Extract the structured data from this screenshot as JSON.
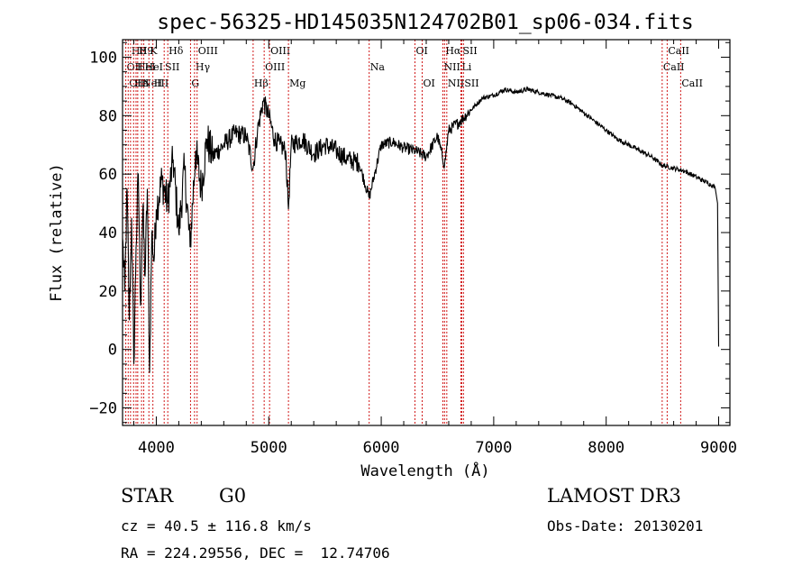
{
  "chart_data": {
    "type": "line",
    "title": "spec-56325-HD145035N124702B01_sp06-034.fits",
    "xlabel": "Wavelength (Å)",
    "ylabel": "Flux (relative)",
    "xlim": [
      3700,
      9100
    ],
    "ylim": [
      -26,
      106
    ],
    "xticks": [
      4000,
      5000,
      6000,
      7000,
      8000,
      9000
    ],
    "yticks": [
      -20,
      0,
      20,
      40,
      60,
      80,
      100
    ],
    "line_color": "#000000",
    "marker_color": "#cc0000",
    "series": [
      {
        "name": "flux",
        "x": [
          3700,
          3720,
          3740,
          3760,
          3780,
          3800,
          3820,
          3840,
          3860,
          3880,
          3900,
          3920,
          3940,
          3960,
          3980,
          4000,
          4050,
          4100,
          4150,
          4200,
          4250,
          4300,
          4350,
          4400,
          4450,
          4500,
          4600,
          4700,
          4800,
          4861,
          4900,
          4950,
          5000,
          5050,
          5100,
          5150,
          5175,
          5200,
          5300,
          5400,
          5500,
          5600,
          5700,
          5800,
          5893,
          6000,
          6100,
          6200,
          6300,
          6400,
          6500,
          6563,
          6600,
          6700,
          6800,
          6900,
          7000,
          7100,
          7200,
          7300,
          7400,
          7500,
          7600,
          7700,
          7800,
          7900,
          8000,
          8100,
          8200,
          8300,
          8400,
          8500,
          8600,
          8700,
          8800,
          8900,
          8950,
          8970,
          8990,
          9000
        ],
        "y": [
          38,
          20,
          55,
          10,
          45,
          -5,
          35,
          60,
          15,
          48,
          25,
          55,
          -8,
          40,
          30,
          48,
          58,
          50,
          65,
          40,
          62,
          35,
          68,
          55,
          72,
          66,
          70,
          74,
          73,
          62,
          75,
          85,
          80,
          72,
          70,
          68,
          48,
          70,
          72,
          67,
          70,
          68,
          65,
          64,
          52,
          70,
          71,
          69,
          68,
          66,
          73,
          63,
          75,
          78,
          82,
          86,
          87,
          89,
          88,
          89,
          88,
          87,
          86,
          84,
          81,
          78,
          75,
          72,
          70,
          68,
          66,
          63,
          62,
          61,
          59,
          57,
          56,
          55,
          50,
          1
        ]
      }
    ],
    "lines": [
      {
        "wl": 3729,
        "label": "OII",
        "row": 1,
        "align": "left"
      },
      {
        "wl": 3750,
        "label": "OIII",
        "row": 2,
        "align": "left"
      },
      {
        "wl": 3771,
        "label": "H8",
        "row": 0,
        "align": "left"
      },
      {
        "wl": 3798,
        "label": "Hε",
        "row": 2,
        "align": "left"
      },
      {
        "wl": 3820,
        "label": "HeI",
        "row": 1,
        "align": "left"
      },
      {
        "wl": 3835,
        "label": "H9",
        "row": 0,
        "align": "left"
      },
      {
        "wl": 3869,
        "label": "NeIII",
        "row": 2,
        "align": "left"
      },
      {
        "wl": 3889,
        "label": "HeI",
        "row": 1,
        "align": "left"
      },
      {
        "wl": 3934,
        "label": "K",
        "row": 0,
        "align": "left"
      },
      {
        "wl": 3970,
        "label": "H",
        "row": 2,
        "align": "left"
      },
      {
        "wl": 4070,
        "label": "SII",
        "row": 1,
        "align": "left"
      },
      {
        "wl": 4102,
        "label": "Hδ",
        "row": 0,
        "align": "left"
      },
      {
        "wl": 4304,
        "label": "G",
        "row": 2,
        "align": "left"
      },
      {
        "wl": 4340,
        "label": "Hγ",
        "row": 1,
        "align": "left"
      },
      {
        "wl": 4363,
        "label": "OIII",
        "row": 0,
        "align": "left"
      },
      {
        "wl": 4861,
        "label": "Hβ",
        "row": 2,
        "align": "left"
      },
      {
        "wl": 4959,
        "label": "OIII",
        "row": 1,
        "align": "left"
      },
      {
        "wl": 5007,
        "label": "OIII",
        "row": 0,
        "align": "left"
      },
      {
        "wl": 5175,
        "label": "Mg",
        "row": 2,
        "align": "left"
      },
      {
        "wl": 5893,
        "label": "Na",
        "row": 1,
        "align": "left"
      },
      {
        "wl": 6300,
        "label": "OI",
        "row": 0,
        "align": "left"
      },
      {
        "wl": 6364,
        "label": "OI",
        "row": 2,
        "align": "left"
      },
      {
        "wl": 6548,
        "label": "NII",
        "row": 1,
        "align": "left"
      },
      {
        "wl": 6563,
        "label": "Hα",
        "row": 0,
        "align": "left"
      },
      {
        "wl": 6583,
        "label": "NII",
        "row": 2,
        "align": "left"
      },
      {
        "wl": 6708,
        "label": "Li",
        "row": 1,
        "align": "left"
      },
      {
        "wl": 6716,
        "label": "SII",
        "row": 0,
        "align": "left"
      },
      {
        "wl": 6731,
        "label": "SII",
        "row": 2,
        "align": "left"
      },
      {
        "wl": 8498,
        "label": "CaII",
        "row": 1,
        "align": "left"
      },
      {
        "wl": 8542,
        "label": "CaII",
        "row": 0,
        "align": "left"
      },
      {
        "wl": 8662,
        "label": "CaII",
        "row": 2,
        "align": "left"
      }
    ]
  },
  "info": {
    "class_label": "STAR",
    "subclass": "G0",
    "survey": "LAMOST DR3",
    "cz": "cz = 40.5 ± 116.8 km/s",
    "obs_date": "Obs-Date: 20130201",
    "coords": "RA = 224.29556, DEC =  12.74706"
  }
}
